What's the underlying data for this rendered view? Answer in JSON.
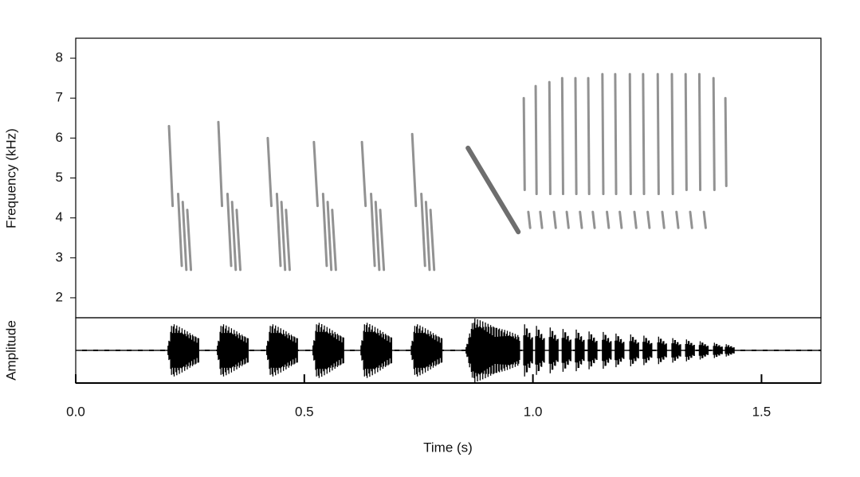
{
  "chart_data": {
    "type": "spectrogram",
    "xlabel": "Time (s)",
    "ylabel": "Frequency (kHz)",
    "y2label": "Amplitude",
    "xlim": [
      0,
      1.63
    ],
    "ylim": [
      1.5,
      8.5
    ],
    "y2lim": [
      -1,
      1
    ],
    "xticks": [
      {
        "value": 0,
        "label": "0.0"
      },
      0.5,
      {
        "value": 1,
        "label": "1.0"
      },
      1.5
    ],
    "yticks": [
      2,
      3,
      4,
      5,
      6,
      7,
      8
    ],
    "grid": false,
    "note_color": "#4a4a4a",
    "wave_color": "#000000",
    "notes": [
      {
        "t0": 0.204,
        "f0": 6.3,
        "t1": 0.212,
        "f1": 4.3
      },
      {
        "t0": 0.224,
        "f0": 4.6,
        "t1": 0.232,
        "f1": 2.8
      },
      {
        "t0": 0.234,
        "f0": 4.4,
        "t1": 0.242,
        "f1": 2.7
      },
      {
        "t0": 0.244,
        "f0": 4.2,
        "t1": 0.252,
        "f1": 2.7
      },
      {
        "t0": 0.312,
        "f0": 6.4,
        "t1": 0.32,
        "f1": 4.3
      },
      {
        "t0": 0.332,
        "f0": 4.6,
        "t1": 0.34,
        "f1": 2.8
      },
      {
        "t0": 0.342,
        "f0": 4.4,
        "t1": 0.35,
        "f1": 2.7
      },
      {
        "t0": 0.352,
        "f0": 4.2,
        "t1": 0.36,
        "f1": 2.7
      },
      {
        "t0": 0.42,
        "f0": 6.0,
        "t1": 0.428,
        "f1": 4.3
      },
      {
        "t0": 0.44,
        "f0": 4.6,
        "t1": 0.448,
        "f1": 2.8
      },
      {
        "t0": 0.45,
        "f0": 4.4,
        "t1": 0.458,
        "f1": 2.7
      },
      {
        "t0": 0.46,
        "f0": 4.2,
        "t1": 0.468,
        "f1": 2.7
      },
      {
        "t0": 0.521,
        "f0": 5.9,
        "t1": 0.529,
        "f1": 4.3
      },
      {
        "t0": 0.541,
        "f0": 4.6,
        "t1": 0.549,
        "f1": 2.8
      },
      {
        "t0": 0.551,
        "f0": 4.4,
        "t1": 0.559,
        "f1": 2.7
      },
      {
        "t0": 0.561,
        "f0": 4.2,
        "t1": 0.569,
        "f1": 2.7
      },
      {
        "t0": 0.626,
        "f0": 5.9,
        "t1": 0.634,
        "f1": 4.3
      },
      {
        "t0": 0.646,
        "f0": 4.6,
        "t1": 0.654,
        "f1": 2.8
      },
      {
        "t0": 0.656,
        "f0": 4.4,
        "t1": 0.664,
        "f1": 2.7
      },
      {
        "t0": 0.666,
        "f0": 4.2,
        "t1": 0.674,
        "f1": 2.7
      },
      {
        "t0": 0.736,
        "f0": 6.1,
        "t1": 0.744,
        "f1": 4.3
      },
      {
        "t0": 0.756,
        "f0": 4.6,
        "t1": 0.764,
        "f1": 2.8
      },
      {
        "t0": 0.766,
        "f0": 4.4,
        "t1": 0.774,
        "f1": 2.7
      },
      {
        "t0": 0.776,
        "f0": 4.2,
        "t1": 0.784,
        "f1": 2.7
      },
      {
        "t0": 0.858,
        "f0": 5.75,
        "t1": 0.968,
        "f1": 3.65
      },
      {
        "t0": 0.98,
        "f0": 7.0,
        "t1": 0.982,
        "f1": 4.7
      },
      {
        "t0": 1.006,
        "f0": 7.3,
        "t1": 1.008,
        "f1": 4.6
      },
      {
        "t0": 1.036,
        "f0": 7.4,
        "t1": 1.038,
        "f1": 4.6
      },
      {
        "t0": 1.064,
        "f0": 7.5,
        "t1": 1.066,
        "f1": 4.6
      },
      {
        "t0": 1.093,
        "f0": 7.5,
        "t1": 1.095,
        "f1": 4.6
      },
      {
        "t0": 1.121,
        "f0": 7.5,
        "t1": 1.123,
        "f1": 4.6
      },
      {
        "t0": 1.152,
        "f0": 7.6,
        "t1": 1.154,
        "f1": 4.6
      },
      {
        "t0": 1.18,
        "f0": 7.6,
        "t1": 1.182,
        "f1": 4.6
      },
      {
        "t0": 1.212,
        "f0": 7.6,
        "t1": 1.214,
        "f1": 4.6
      },
      {
        "t0": 1.241,
        "f0": 7.6,
        "t1": 1.243,
        "f1": 4.6
      },
      {
        "t0": 1.273,
        "f0": 7.6,
        "t1": 1.275,
        "f1": 4.6
      },
      {
        "t0": 1.304,
        "f0": 7.6,
        "t1": 1.306,
        "f1": 4.6
      },
      {
        "t0": 1.334,
        "f0": 7.6,
        "t1": 1.336,
        "f1": 4.7
      },
      {
        "t0": 1.364,
        "f0": 7.6,
        "t1": 1.366,
        "f1": 4.7
      },
      {
        "t0": 1.395,
        "f0": 7.5,
        "t1": 1.397,
        "f1": 4.7
      },
      {
        "t0": 1.421,
        "f0": 7.0,
        "t1": 1.423,
        "f1": 4.8
      },
      {
        "t0": 0.99,
        "f0": 4.15,
        "t1": 0.994,
        "f1": 3.75
      },
      {
        "t0": 1.016,
        "f0": 4.15,
        "t1": 1.02,
        "f1": 3.75
      },
      {
        "t0": 1.046,
        "f0": 4.15,
        "t1": 1.05,
        "f1": 3.75
      },
      {
        "t0": 1.074,
        "f0": 4.15,
        "t1": 1.078,
        "f1": 3.75
      },
      {
        "t0": 1.103,
        "f0": 4.15,
        "t1": 1.107,
        "f1": 3.75
      },
      {
        "t0": 1.131,
        "f0": 4.15,
        "t1": 1.135,
        "f1": 3.75
      },
      {
        "t0": 1.162,
        "f0": 4.15,
        "t1": 1.166,
        "f1": 3.75
      },
      {
        "t0": 1.19,
        "f0": 4.15,
        "t1": 1.194,
        "f1": 3.75
      },
      {
        "t0": 1.222,
        "f0": 4.15,
        "t1": 1.226,
        "f1": 3.75
      },
      {
        "t0": 1.251,
        "f0": 4.15,
        "t1": 1.255,
        "f1": 3.75
      },
      {
        "t0": 1.283,
        "f0": 4.15,
        "t1": 1.287,
        "f1": 3.75
      },
      {
        "t0": 1.314,
        "f0": 4.15,
        "t1": 1.318,
        "f1": 3.75
      },
      {
        "t0": 1.344,
        "f0": 4.15,
        "t1": 1.348,
        "f1": 3.75
      },
      {
        "t0": 1.374,
        "f0": 4.15,
        "t1": 1.378,
        "f1": 3.75
      }
    ],
    "bursts": [
      {
        "t0": 0.2,
        "t1": 0.27,
        "amp": 0.85
      },
      {
        "t0": 0.308,
        "t1": 0.378,
        "amp": 0.85
      },
      {
        "t0": 0.416,
        "t1": 0.486,
        "amp": 0.85
      },
      {
        "t0": 0.517,
        "t1": 0.587,
        "amp": 0.9
      },
      {
        "t0": 0.622,
        "t1": 0.692,
        "amp": 0.9
      },
      {
        "t0": 0.732,
        "t1": 0.802,
        "amp": 0.85
      },
      {
        "t0": 0.852,
        "t1": 0.972,
        "amp": 1.0
      },
      {
        "t0": 0.978,
        "t1": 1.0,
        "amp": 0.85
      },
      {
        "t0": 1.004,
        "t1": 1.026,
        "amp": 0.8
      },
      {
        "t0": 1.034,
        "t1": 1.056,
        "amp": 0.75
      },
      {
        "t0": 1.062,
        "t1": 1.084,
        "amp": 0.7
      },
      {
        "t0": 1.091,
        "t1": 1.113,
        "amp": 0.68
      },
      {
        "t0": 1.119,
        "t1": 1.141,
        "amp": 0.62
      },
      {
        "t0": 1.15,
        "t1": 1.172,
        "amp": 0.6
      },
      {
        "t0": 1.178,
        "t1": 1.2,
        "amp": 0.55
      },
      {
        "t0": 1.21,
        "t1": 1.232,
        "amp": 0.52
      },
      {
        "t0": 1.239,
        "t1": 1.261,
        "amp": 0.48
      },
      {
        "t0": 1.271,
        "t1": 1.293,
        "amp": 0.45
      },
      {
        "t0": 1.302,
        "t1": 1.324,
        "amp": 0.4
      },
      {
        "t0": 1.332,
        "t1": 1.354,
        "amp": 0.36
      },
      {
        "t0": 1.362,
        "t1": 1.384,
        "amp": 0.3
      },
      {
        "t0": 1.393,
        "t1": 1.415,
        "amp": 0.25
      },
      {
        "t0": 1.419,
        "t1": 1.441,
        "amp": 0.2
      }
    ]
  }
}
